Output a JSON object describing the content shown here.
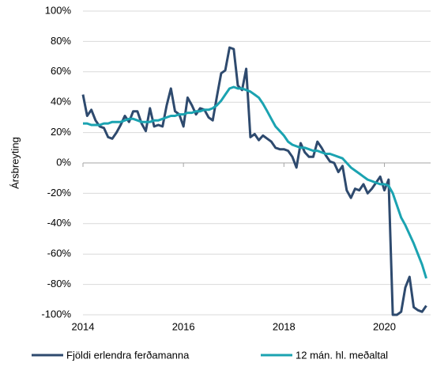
{
  "chart_data": {
    "type": "line",
    "y_label": "Ársbreyting",
    "x": [
      2014,
      2014.083,
      2014.167,
      2014.25,
      2014.333,
      2014.417,
      2014.5,
      2014.583,
      2014.667,
      2014.75,
      2014.833,
      2014.917,
      2015,
      2015.083,
      2015.167,
      2015.25,
      2015.333,
      2015.417,
      2015.5,
      2015.583,
      2015.667,
      2015.75,
      2015.833,
      2015.917,
      2016,
      2016.083,
      2016.167,
      2016.25,
      2016.333,
      2016.417,
      2016.5,
      2016.583,
      2016.667,
      2016.75,
      2016.833,
      2016.917,
      2017,
      2017.083,
      2017.167,
      2017.25,
      2017.333,
      2017.417,
      2017.5,
      2017.583,
      2017.667,
      2017.75,
      2017.833,
      2017.917,
      2018,
      2018.083,
      2018.167,
      2018.25,
      2018.333,
      2018.417,
      2018.5,
      2018.583,
      2018.667,
      2018.75,
      2018.833,
      2018.917,
      2019,
      2019.083,
      2019.167,
      2019.25,
      2019.333,
      2019.417,
      2019.5,
      2019.583,
      2019.667,
      2019.75,
      2019.833,
      2019.917,
      2020,
      2020.083,
      2020.167,
      2020.25,
      2020.333,
      2020.417,
      2020.5,
      2020.583,
      2020.667,
      2020.75,
      2020.833
    ],
    "series": [
      {
        "name": "Fjöldi erlendra ferðamanna",
        "color": "#2e4a6e",
        "values": [
          45,
          31,
          35,
          28,
          24,
          23,
          17,
          16,
          20,
          25,
          31,
          27,
          34,
          34,
          26,
          21,
          36,
          24,
          25,
          24,
          38,
          49,
          34,
          32,
          24,
          43,
          38,
          32,
          36,
          35,
          30,
          28,
          44,
          59,
          61,
          76,
          75,
          51,
          48,
          62,
          17,
          19,
          15,
          18,
          16,
          14,
          10,
          9,
          9,
          8,
          4,
          -3,
          13,
          7,
          4,
          4,
          14,
          10,
          5,
          1,
          0,
          -6,
          -2,
          -18,
          -23,
          -17,
          -18,
          -14,
          -20,
          -17,
          -13,
          -9,
          -18,
          -11,
          -100,
          -100,
          -98,
          -82,
          -75,
          -95,
          -97,
          -98,
          -94
        ]
      },
      {
        "name": "12 mán. hl. meðaltal",
        "color": "#1ba3b1",
        "values": [
          26,
          26,
          25,
          25,
          25,
          26,
          26,
          27,
          27,
          27,
          28,
          29,
          29,
          28,
          27,
          27,
          27,
          28,
          28,
          29,
          30,
          31,
          31,
          32,
          32,
          33,
          33,
          34,
          34,
          35,
          35,
          36,
          38,
          41,
          45,
          49,
          50,
          49,
          49,
          48,
          47,
          45,
          43,
          39,
          34,
          29,
          24,
          21,
          18,
          14,
          12,
          11,
          10,
          10,
          9,
          8,
          8,
          7,
          6,
          6,
          5,
          4,
          3,
          0,
          -3,
          -5,
          -7,
          -9,
          -11,
          -12,
          -13,
          -14,
          -14,
          -15,
          -20,
          -28,
          -36,
          -41,
          -47,
          -53,
          -60,
          -67,
          -76
        ]
      }
    ],
    "xlim": [
      2014,
      2020.92
    ],
    "xticks": [
      2014,
      2016,
      2018,
      2020
    ],
    "ylim": [
      -100,
      100
    ],
    "yticks": [
      {
        "value": -100,
        "label": "-100%"
      },
      {
        "value": -80,
        "label": "-80%"
      },
      {
        "value": -60,
        "label": "-60%"
      },
      {
        "value": -40,
        "label": "-40%"
      },
      {
        "value": -20,
        "label": "-20%"
      },
      {
        "value": 0,
        "label": "0%"
      },
      {
        "value": 20,
        "label": "20%"
      },
      {
        "value": 40,
        "label": "40%"
      },
      {
        "value": 60,
        "label": "60%"
      },
      {
        "value": 80,
        "label": "80%"
      },
      {
        "value": 100,
        "label": "100%"
      }
    ],
    "grid": true,
    "legend": "bottom"
  }
}
